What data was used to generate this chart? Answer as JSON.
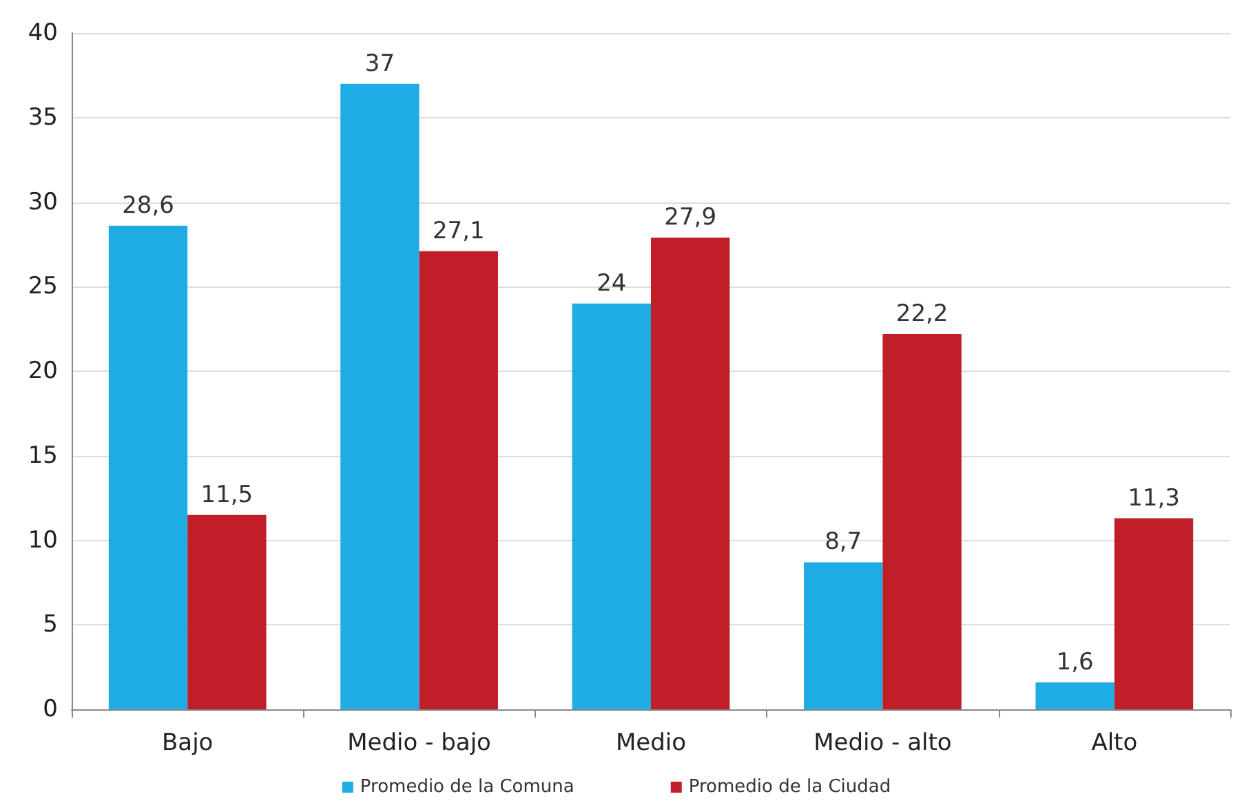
{
  "chart_data": {
    "type": "bar",
    "categories": [
      "Bajo",
      "Medio - bajo",
      "Medio",
      "Medio - alto",
      "Alto"
    ],
    "series": [
      {
        "name": "Promedio de la Comuna",
        "color": "#1fabe3",
        "values": [
          28.6,
          37,
          24,
          8.7,
          1.6
        ],
        "value_labels": [
          "28,6",
          "37",
          "24",
          "8,7",
          "1,6"
        ]
      },
      {
        "name": "Promedio de la Ciudad",
        "color": "#c01f28",
        "values": [
          11.5,
          27.1,
          27.9,
          22.2,
          11.3
        ],
        "value_labels": [
          "11,5",
          "27,1",
          "27,9",
          "22,2",
          "11,3"
        ]
      }
    ],
    "ylim": [
      0,
      40
    ],
    "yticks": [
      0,
      5,
      10,
      15,
      20,
      25,
      30,
      35,
      40
    ],
    "grid": "y",
    "legend": "bottom"
  }
}
